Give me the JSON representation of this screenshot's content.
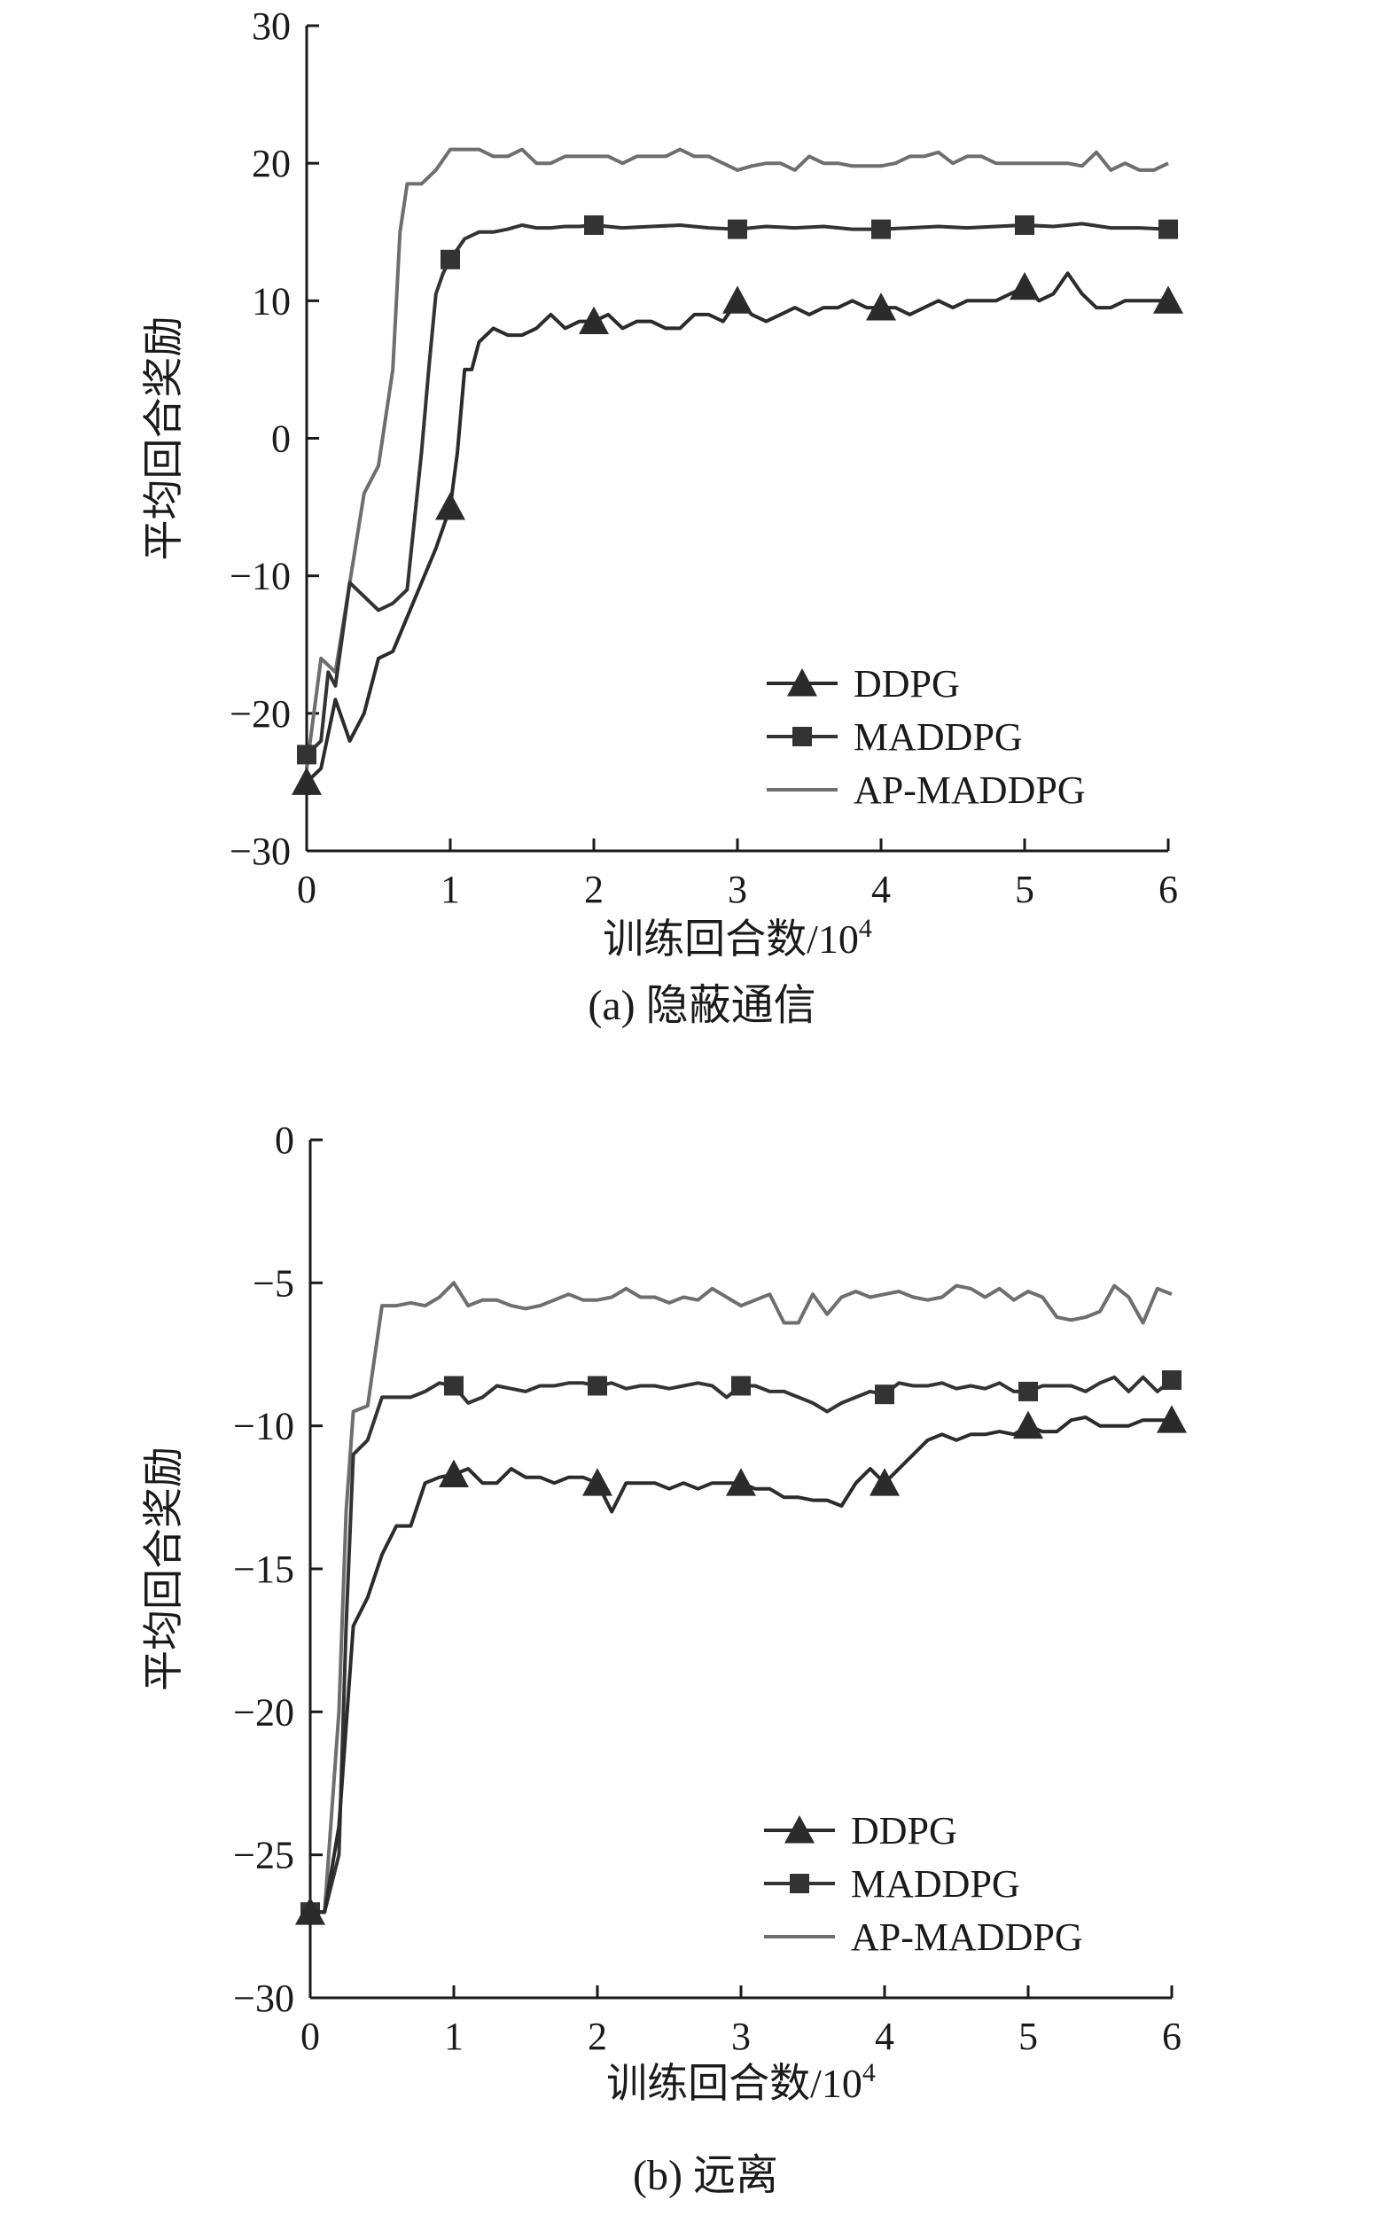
{
  "chart_data": [
    {
      "type": "line",
      "caption": "(a) 隐蔽通信",
      "xlabel": "训练回合数/10",
      "xlabel_sup": "4",
      "ylabel": "平均回合奖励",
      "xlim": [
        0,
        6
      ],
      "ylim": [
        -30,
        30
      ],
      "xticks": [
        0,
        1,
        2,
        3,
        4,
        5,
        6
      ],
      "yticks": [
        -30,
        -20,
        -10,
        0,
        10,
        20,
        30
      ],
      "grid": false,
      "legend_position": "lower-right",
      "series": [
        {
          "name": "DDPG",
          "marker": "triangle",
          "color": "#2b2b2b",
          "x": [
            0,
            0.1,
            0.2,
            0.3,
            0.4,
            0.5,
            0.6,
            0.7,
            0.8,
            0.9,
            1.0,
            1.05,
            1.1,
            1.15,
            1.2,
            1.3,
            1.4,
            1.5,
            1.6,
            1.7,
            1.8,
            1.9,
            2.0,
            2.1,
            2.2,
            2.3,
            2.4,
            2.5,
            2.6,
            2.7,
            2.8,
            2.9,
            3.0,
            3.1,
            3.2,
            3.3,
            3.4,
            3.5,
            3.6,
            3.7,
            3.8,
            3.9,
            4.0,
            4.1,
            4.2,
            4.3,
            4.4,
            4.5,
            4.6,
            4.7,
            4.8,
            4.9,
            5.0,
            5.1,
            5.2,
            5.3,
            5.4,
            5.5,
            5.6,
            5.7,
            5.8,
            5.9,
            6.0
          ],
          "y": [
            -25,
            -24,
            -19,
            -22,
            -20,
            -16,
            -15.5,
            -13,
            -10.5,
            -8,
            -5,
            -1,
            5,
            5,
            7,
            8,
            7.5,
            7.5,
            8,
            9,
            8,
            8.5,
            8.5,
            9,
            8,
            8.5,
            8.5,
            8,
            8,
            9,
            9,
            8.5,
            10,
            9,
            8.5,
            9,
            9.5,
            9,
            9.5,
            9.5,
            10,
            9.5,
            9.5,
            9.5,
            9,
            9.5,
            10,
            9.5,
            10,
            10,
            10,
            10.5,
            11,
            10,
            10.5,
            12,
            10.5,
            9.5,
            9.5,
            10,
            10,
            10,
            10
          ]
        },
        {
          "name": "MADDPG",
          "marker": "square",
          "color": "#333333",
          "x": [
            0,
            0.1,
            0.15,
            0.2,
            0.3,
            0.4,
            0.5,
            0.6,
            0.7,
            0.75,
            0.8,
            0.85,
            0.9,
            0.95,
            1.0,
            1.1,
            1.2,
            1.3,
            1.4,
            1.5,
            1.6,
            1.7,
            1.8,
            1.9,
            2.0,
            2.2,
            2.4,
            2.6,
            2.8,
            3.0,
            3.2,
            3.4,
            3.6,
            3.8,
            4.0,
            4.2,
            4.4,
            4.6,
            4.8,
            5.0,
            5.2,
            5.4,
            5.6,
            5.8,
            6.0
          ],
          "y": [
            -23,
            -22,
            -17,
            -18,
            -10.5,
            -11.5,
            -12.5,
            -12,
            -11,
            -6,
            -1,
            5,
            10.5,
            12,
            13,
            14.5,
            15,
            15,
            15.2,
            15.5,
            15.3,
            15.3,
            15.4,
            15.4,
            15.5,
            15.3,
            15.4,
            15.5,
            15.3,
            15.2,
            15.4,
            15.3,
            15.4,
            15.2,
            15.2,
            15.3,
            15.4,
            15.3,
            15.4,
            15.5,
            15.4,
            15.6,
            15.3,
            15.3,
            15.2
          ]
        },
        {
          "name": "AP-MADDPG",
          "marker": "none",
          "color": "#6e6e6e",
          "x": [
            0,
            0.1,
            0.2,
            0.3,
            0.4,
            0.5,
            0.6,
            0.65,
            0.7,
            0.8,
            0.9,
            1.0,
            1.1,
            1.2,
            1.3,
            1.4,
            1.5,
            1.6,
            1.7,
            1.8,
            1.9,
            2.0,
            2.1,
            2.2,
            2.3,
            2.4,
            2.5,
            2.6,
            2.7,
            2.8,
            2.9,
            3.0,
            3.1,
            3.2,
            3.3,
            3.4,
            3.5,
            3.6,
            3.7,
            3.8,
            3.9,
            4.0,
            4.1,
            4.2,
            4.3,
            4.4,
            4.5,
            4.6,
            4.7,
            4.8,
            4.9,
            5.0,
            5.1,
            5.2,
            5.3,
            5.4,
            5.5,
            5.6,
            5.7,
            5.8,
            5.9,
            6.0
          ],
          "y": [
            -24,
            -16,
            -17,
            -10.5,
            -4,
            -2,
            5,
            15,
            18.5,
            18.5,
            19.5,
            21,
            21,
            21,
            20.5,
            20.5,
            21,
            20,
            20,
            20.5,
            20.5,
            20.5,
            20.5,
            20,
            20.5,
            20.5,
            20.5,
            21,
            20.5,
            20.5,
            20,
            19.5,
            19.8,
            20,
            20,
            19.5,
            20.5,
            20,
            20,
            19.8,
            19.8,
            19.8,
            20,
            20.5,
            20.5,
            20.8,
            20,
            20.5,
            20.5,
            20,
            20,
            20,
            20,
            20,
            20,
            19.8,
            20.8,
            19.5,
            20,
            19.5,
            19.5,
            20
          ]
        }
      ]
    },
    {
      "type": "line",
      "caption": "(b) 远离",
      "xlabel": "训练回合数/10",
      "xlabel_sup": "4",
      "ylabel": "平均回合奖励",
      "xlim": [
        0,
        6
      ],
      "ylim": [
        -30,
        0
      ],
      "xticks": [
        0,
        1,
        2,
        3,
        4,
        5,
        6
      ],
      "yticks": [
        -30,
        -25,
        -20,
        -15,
        -10,
        -5,
        0
      ],
      "grid": false,
      "legend_position": "lower-right",
      "series": [
        {
          "name": "DDPG",
          "marker": "triangle",
          "color": "#2b2b2b",
          "x": [
            0,
            0.1,
            0.2,
            0.3,
            0.4,
            0.5,
            0.6,
            0.7,
            0.8,
            0.9,
            1.0,
            1.1,
            1.2,
            1.3,
            1.4,
            1.5,
            1.6,
            1.7,
            1.8,
            1.9,
            2.0,
            2.1,
            2.2,
            2.3,
            2.4,
            2.5,
            2.6,
            2.7,
            2.8,
            2.9,
            3.0,
            3.1,
            3.2,
            3.3,
            3.4,
            3.5,
            3.6,
            3.7,
            3.8,
            3.9,
            4.0,
            4.1,
            4.2,
            4.3,
            4.4,
            4.5,
            4.6,
            4.7,
            4.8,
            4.9,
            5.0,
            5.1,
            5.2,
            5.3,
            5.4,
            5.5,
            5.6,
            5.7,
            5.8,
            5.9,
            6.0
          ],
          "y": [
            -27,
            -27,
            -24,
            -17,
            -16,
            -14.5,
            -13.5,
            -13.5,
            -12,
            -11.8,
            -11.7,
            -11.5,
            -12,
            -12,
            -11.5,
            -11.8,
            -11.8,
            -12,
            -11.8,
            -11.8,
            -12,
            -13,
            -12,
            -12,
            -12,
            -12.2,
            -12,
            -12.2,
            -12,
            -12,
            -12,
            -12.2,
            -12.2,
            -12.5,
            -12.5,
            -12.6,
            -12.6,
            -12.8,
            -12,
            -11.5,
            -12,
            -11.5,
            -11,
            -10.5,
            -10.3,
            -10.5,
            -10.3,
            -10.3,
            -10.2,
            -10.3,
            -10,
            -10.2,
            -10.2,
            -9.8,
            -9.7,
            -10,
            -10,
            -10,
            -9.8,
            -9.8,
            -9.8
          ]
        },
        {
          "name": "MADDPG",
          "marker": "square",
          "color": "#333333",
          "x": [
            0,
            0.1,
            0.2,
            0.25,
            0.3,
            0.4,
            0.5,
            0.6,
            0.7,
            0.8,
            0.9,
            1.0,
            1.1,
            1.2,
            1.3,
            1.4,
            1.5,
            1.6,
            1.7,
            1.8,
            1.9,
            2.0,
            2.1,
            2.2,
            2.3,
            2.4,
            2.5,
            2.6,
            2.7,
            2.8,
            2.9,
            3.0,
            3.1,
            3.2,
            3.3,
            3.4,
            3.5,
            3.6,
            3.7,
            3.8,
            3.9,
            4.0,
            4.1,
            4.2,
            4.3,
            4.4,
            4.5,
            4.6,
            4.7,
            4.8,
            4.9,
            5.0,
            5.1,
            5.2,
            5.3,
            5.4,
            5.5,
            5.6,
            5.7,
            5.8,
            5.9,
            6.0
          ],
          "y": [
            -27,
            -27,
            -25,
            -17,
            -11,
            -10.5,
            -9,
            -9,
            -9,
            -8.8,
            -8.5,
            -8.6,
            -9.2,
            -9,
            -8.6,
            -8.7,
            -8.8,
            -8.6,
            -8.6,
            -8.5,
            -8.5,
            -8.6,
            -8.5,
            -8.7,
            -8.6,
            -8.6,
            -8.7,
            -8.6,
            -8.5,
            -8.6,
            -9,
            -8.6,
            -8.6,
            -8.8,
            -8.8,
            -9,
            -9.2,
            -9.5,
            -9.2,
            -9,
            -8.8,
            -8.9,
            -8.5,
            -8.6,
            -8.6,
            -8.5,
            -8.7,
            -8.6,
            -8.7,
            -8.5,
            -8.8,
            -8.8,
            -8.6,
            -8.6,
            -8.6,
            -8.8,
            -8.5,
            -8.3,
            -8.8,
            -8.3,
            -8.8,
            -8.4
          ]
        },
        {
          "name": "AP-MADDPG",
          "marker": "none",
          "color": "#6e6e6e",
          "x": [
            0,
            0.1,
            0.2,
            0.25,
            0.3,
            0.4,
            0.5,
            0.6,
            0.7,
            0.8,
            0.9,
            1.0,
            1.1,
            1.2,
            1.3,
            1.4,
            1.5,
            1.6,
            1.7,
            1.8,
            1.9,
            2.0,
            2.1,
            2.2,
            2.3,
            2.4,
            2.5,
            2.6,
            2.7,
            2.8,
            2.9,
            3.0,
            3.1,
            3.2,
            3.3,
            3.4,
            3.5,
            3.6,
            3.7,
            3.8,
            3.9,
            4.0,
            4.1,
            4.2,
            4.3,
            4.4,
            4.5,
            4.6,
            4.7,
            4.8,
            4.9,
            5.0,
            5.1,
            5.2,
            5.3,
            5.4,
            5.5,
            5.6,
            5.7,
            5.8,
            5.9,
            6.0
          ],
          "y": [
            -27,
            -27,
            -20,
            -13,
            -9.5,
            -9.3,
            -5.8,
            -5.8,
            -5.7,
            -5.8,
            -5.5,
            -5,
            -5.8,
            -5.6,
            -5.6,
            -5.8,
            -5.9,
            -5.8,
            -5.6,
            -5.4,
            -5.6,
            -5.6,
            -5.5,
            -5.2,
            -5.5,
            -5.5,
            -5.7,
            -5.5,
            -5.6,
            -5.2,
            -5.5,
            -5.8,
            -5.6,
            -5.4,
            -6.4,
            -6.4,
            -5.4,
            -6.1,
            -5.5,
            -5.3,
            -5.5,
            -5.4,
            -5.3,
            -5.5,
            -5.6,
            -5.5,
            -5.1,
            -5.2,
            -5.5,
            -5.2,
            -5.6,
            -5.3,
            -5.5,
            -6.2,
            -6.3,
            -6.2,
            -6,
            -5.1,
            -5.5,
            -6.4,
            -5.2,
            -5.4
          ]
        }
      ]
    }
  ]
}
